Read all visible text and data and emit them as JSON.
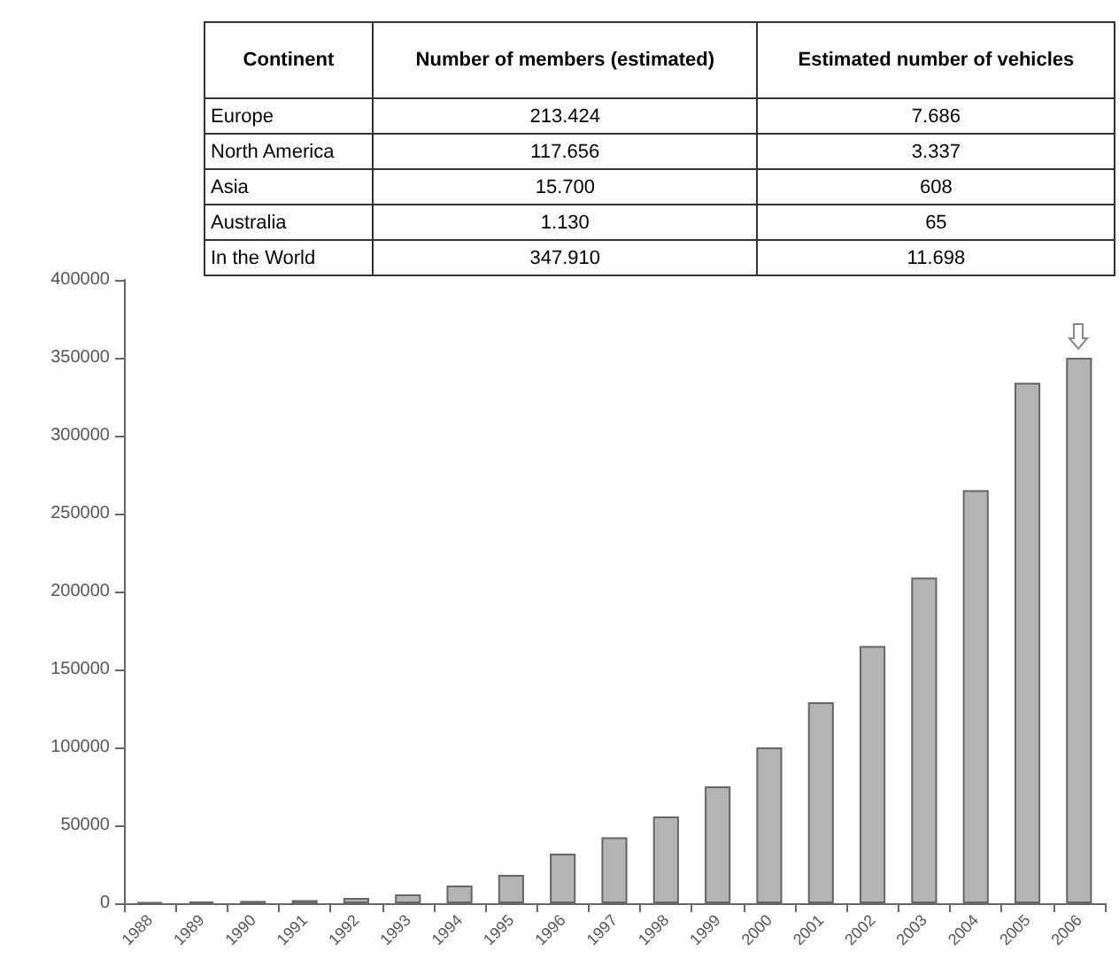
{
  "chart_data": [
    {
      "type": "other",
      "annotations": [
        "Continent",
        "Number of members (estimated)",
        "Estimated number of vehicles",
        "Europe",
        "213.424",
        "7.686",
        "North America",
        "117.656",
        "3.337",
        "Asia",
        "15.700",
        "608",
        "Australia",
        "1.130",
        "65",
        "In the World",
        "347.910",
        "11.698"
      ]
    },
    {
      "type": "bar",
      "categories": [
        "1988",
        "1989",
        "1990",
        "1991",
        "1992",
        "1993",
        "1994",
        "1995",
        "1996",
        "1997",
        "1998",
        "1999",
        "2000",
        "2001",
        "2002",
        "2003",
        "2004",
        "2005",
        "2006"
      ],
      "values": [
        500,
        1000,
        1500,
        2000,
        3400,
        5700,
        11400,
        18200,
        31800,
        42400,
        55700,
        75000,
        100000,
        129000,
        165000,
        209000,
        265000,
        334000,
        350000
      ],
      "color": "#b4b4b4",
      "ylim": [
        0,
        400000
      ],
      "yticks": [
        0,
        50000,
        100000,
        150000,
        200000,
        250000,
        300000,
        350000,
        400000
      ],
      "grid": false
    }
  ]
}
